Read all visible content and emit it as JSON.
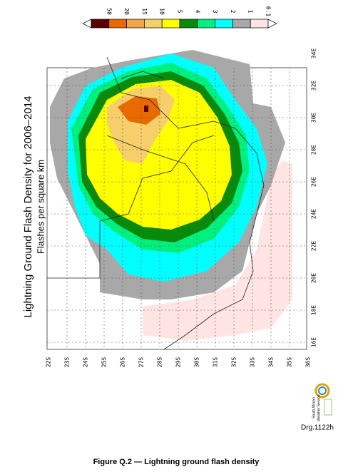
{
  "legend": [
    {
      "label": "50",
      "color": "#5a0000"
    },
    {
      "label": "20",
      "color": "#e86a00"
    },
    {
      "label": "15",
      "color": "#f2a64a"
    },
    {
      "label": "10",
      "color": "#f7cf6a"
    },
    {
      "label": "5",
      "color": "#ffff00"
    },
    {
      "label": "4",
      "color": "#0a8a0a"
    },
    {
      "label": "3",
      "color": "#00f080"
    },
    {
      "label": "2",
      "color": "#00ffff"
    },
    {
      "label": "1",
      "color": "#a8a8a8"
    },
    {
      "label": "0.1",
      "color": "#ffe4e4"
    }
  ],
  "title": "Lightning Ground Flash Density for 2006–2014",
  "subtitle": "Flashes per square km",
  "latitudes": [
    "22S",
    "23S",
    "24S",
    "25S",
    "26S",
    "27S",
    "28S",
    "29S",
    "30S",
    "31S",
    "32S",
    "33S",
    "34S",
    "35S",
    "36S"
  ],
  "longitudes": [
    "34E",
    "32E",
    "30E",
    "28E",
    "26E",
    "24E",
    "22E",
    "20E",
    "18E",
    "16E"
  ],
  "logo": {
    "line1": "South African",
    "line2": "Weather Service"
  },
  "drawing_ref": "Drg.1122h",
  "caption": "Figure Q.2 — Lightning ground flash density"
}
